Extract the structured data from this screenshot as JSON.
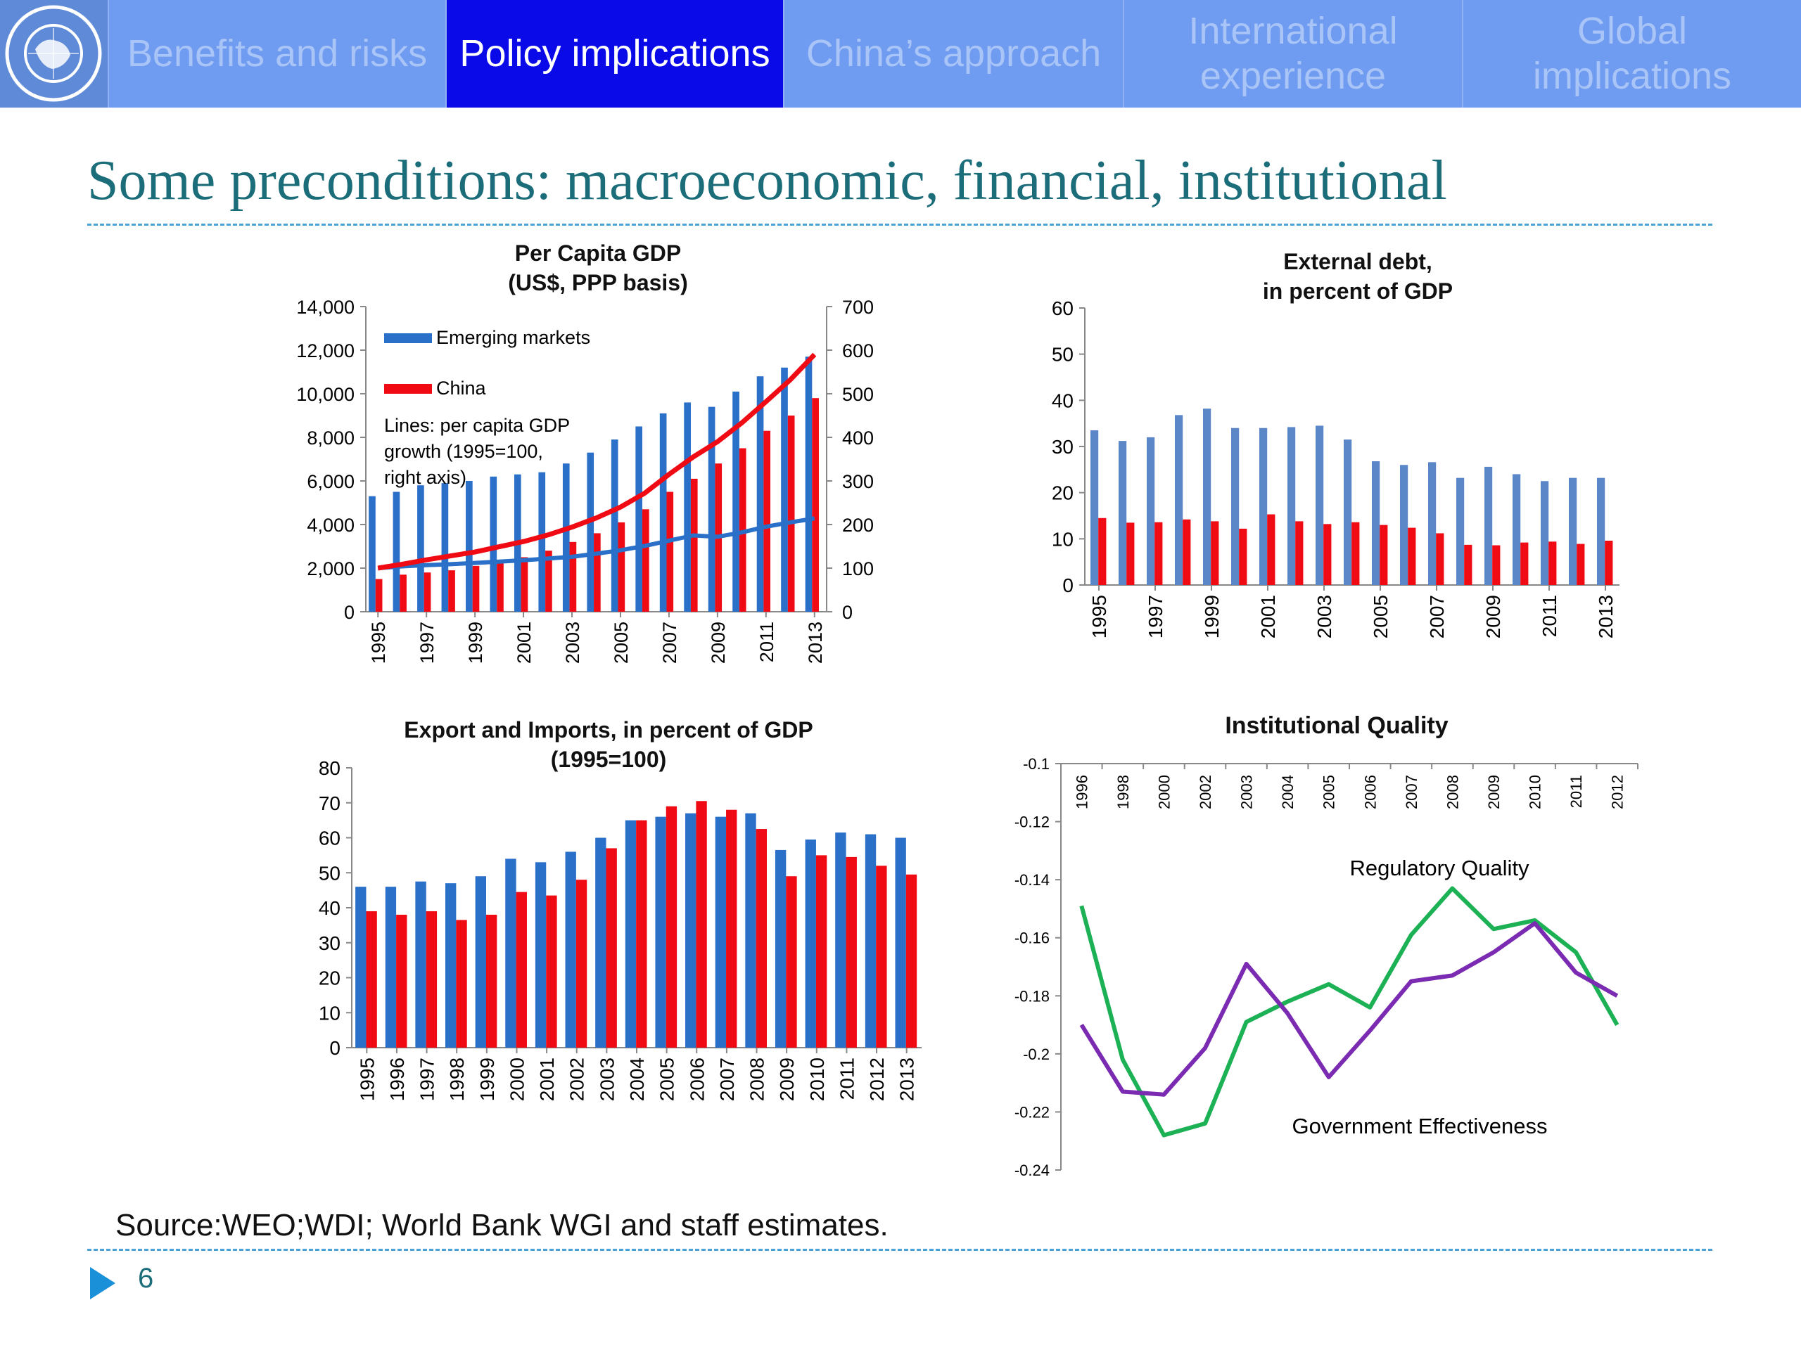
{
  "nav": {
    "logo_text": "INTERNATIONAL MONETARY FUND",
    "tabs": [
      "Benefits and risks",
      "Policy implications",
      "China’s approach",
      "International experience",
      "Global implications"
    ],
    "active_tab": 1
  },
  "title": "Some preconditions: macroeconomic, financial, institutional",
  "source": "Source:WEO;WDI;  World Bank WGI and staff estimates.",
  "page_number": "6",
  "colors": {
    "accent_teal": "#1c6d7a",
    "nav_bg": "#6f9bf0",
    "active_tab": "#0a0ae8",
    "blue_bar": "#2a6fc8",
    "red_bar": "#f00a14",
    "green_line": "#1db155",
    "purple_line": "#7a2bb1"
  },
  "chart_data": [
    {
      "id": "gdp",
      "type": "bar",
      "title": "Per Capita GDP",
      "subtitle": "(US$, PPP  basis)",
      "categories": [
        "1995",
        "1996",
        "1997",
        "1998",
        "1999",
        "2000",
        "2001",
        "2002",
        "2003",
        "2004",
        "2005",
        "2006",
        "2007",
        "2008",
        "2009",
        "2010",
        "2011",
        "2012",
        "2013"
      ],
      "x_tick_labels": [
        "1995",
        "1997",
        "1999",
        "2001",
        "2003",
        "2005",
        "2007",
        "2009",
        "2011",
        "2013"
      ],
      "series": [
        {
          "name": "Emerging markets",
          "kind": "bar",
          "color": "#2a6fc8",
          "values": [
            5300,
            5500,
            5800,
            5900,
            6000,
            6200,
            6300,
            6400,
            6800,
            7300,
            7900,
            8500,
            9100,
            9600,
            9400,
            10100,
            10800,
            11200,
            11700
          ]
        },
        {
          "name": "China",
          "kind": "bar",
          "color": "#f00a14",
          "values": [
            1500,
            1700,
            1800,
            1900,
            2100,
            2300,
            2500,
            2800,
            3200,
            3600,
            4100,
            4700,
            5500,
            6100,
            6800,
            7500,
            8300,
            9000,
            9800
          ]
        },
        {
          "kind": "line",
          "axis": "right",
          "color": "#2a6fc8",
          "values": [
            100,
            104,
            107,
            109,
            112,
            115,
            118,
            122,
            126,
            133,
            141,
            151,
            163,
            175,
            172,
            182,
            195,
            205,
            214
          ]
        },
        {
          "kind": "line",
          "axis": "right",
          "color": "#f00a14",
          "values": [
            100,
            109,
            119,
            128,
            137,
            149,
            161,
            176,
            194,
            215,
            240,
            272,
            315,
            355,
            390,
            433,
            482,
            532,
            590
          ]
        }
      ],
      "annotation": [
        "Lines: per capita GDP",
        "growth (1995=100,",
        "right axis)"
      ],
      "ylim": [
        0,
        14000
      ],
      "y_ticks": [
        "0",
        "2,000",
        "4,000",
        "6,000",
        "8,000",
        "10,000",
        "12,000",
        "14,000"
      ],
      "y2lim": [
        0,
        700
      ],
      "y2_ticks": [
        "0",
        "100",
        "200",
        "300",
        "400",
        "500",
        "600",
        "700"
      ],
      "legend": "top-left"
    },
    {
      "id": "debt",
      "type": "bar",
      "title": "External debt,",
      "subtitle": "in percent of GDP",
      "categories": [
        "1995",
        "1996",
        "1997",
        "1998",
        "1999",
        "2000",
        "2001",
        "2002",
        "2003",
        "2004",
        "2005",
        "2006",
        "2007",
        "2008",
        "2009",
        "2010",
        "2011",
        "2012",
        "2013"
      ],
      "x_tick_labels": [
        "1995",
        "1997",
        "1999",
        "2001",
        "2003",
        "2005",
        "2007",
        "2009",
        "2011",
        "2013"
      ],
      "series": [
        {
          "color": "#5b86c8",
          "values": [
            33.5,
            31.2,
            32,
            36.8,
            38.2,
            34,
            34,
            34.2,
            34.5,
            31.5,
            26.8,
            26,
            26.6,
            23.2,
            25.6,
            24,
            22.5,
            23.2,
            23.2
          ]
        },
        {
          "color": "#f00a14",
          "values": [
            14.5,
            13.5,
            13.6,
            14.2,
            13.8,
            12.2,
            15.3,
            13.8,
            13.2,
            13.6,
            13,
            12.4,
            11.2,
            8.7,
            8.6,
            9.2,
            9.4,
            8.9,
            9.6
          ]
        }
      ],
      "ylim": [
        0,
        60
      ],
      "y_ticks": [
        "0",
        "10",
        "20",
        "30",
        "40",
        "50",
        "60"
      ]
    },
    {
      "id": "trade",
      "type": "bar",
      "title": "Export and Imports, in percent of GDP",
      "subtitle": "(1995=100)",
      "categories": [
        "1995",
        "1996",
        "1997",
        "1998",
        "1999",
        "2000",
        "2001",
        "2002",
        "2003",
        "2004",
        "2005",
        "2006",
        "2007",
        "2008",
        "2009",
        "2010",
        "2011",
        "2012",
        "2013"
      ],
      "series": [
        {
          "color": "#2a6fc8",
          "values": [
            46,
            46,
            47.5,
            47,
            49,
            54,
            53,
            56,
            60,
            65,
            66,
            67,
            66,
            67,
            56.5,
            59.5,
            61.5,
            61,
            60
          ]
        },
        {
          "color": "#f00a14",
          "values": [
            39,
            38,
            39,
            36.5,
            38,
            44.5,
            43.5,
            48,
            57,
            65,
            69,
            70.5,
            68,
            62.5,
            49,
            55,
            54.5,
            52,
            49.5
          ]
        }
      ],
      "ylim": [
        0,
        80
      ],
      "y_ticks": [
        "0",
        "10",
        "20",
        "30",
        "40",
        "50",
        "60",
        "70",
        "80"
      ]
    },
    {
      "id": "inst",
      "type": "line",
      "title": "Institutional Quality",
      "categories": [
        "1996",
        "1998",
        "2000",
        "2002",
        "2003",
        "2004",
        "2005",
        "2006",
        "2007",
        "2008",
        "2009",
        "2010",
        "2011",
        "2012"
      ],
      "series": [
        {
          "name": "Regulatory Quality",
          "color": "#1db155",
          "values": [
            -0.149,
            -0.202,
            -0.228,
            -0.224,
            -0.189,
            -0.182,
            -0.176,
            -0.184,
            -0.159,
            -0.143,
            -0.157,
            -0.154,
            -0.165,
            -0.19
          ]
        },
        {
          "name": "Government Effectiveness",
          "color": "#7a2bb1",
          "values": [
            -0.19,
            -0.213,
            -0.214,
            -0.198,
            -0.169,
            -0.186,
            -0.208,
            -0.192,
            -0.175,
            -0.173,
            -0.165,
            -0.155,
            -0.172,
            -0.18
          ]
        }
      ],
      "ylim": [
        -0.24,
        -0.1
      ],
      "y_ticks": [
        "-0.1",
        "-0.12",
        "-0.14",
        "-0.16",
        "-0.18",
        "-0.2",
        "-0.22",
        "-0.24"
      ]
    }
  ]
}
